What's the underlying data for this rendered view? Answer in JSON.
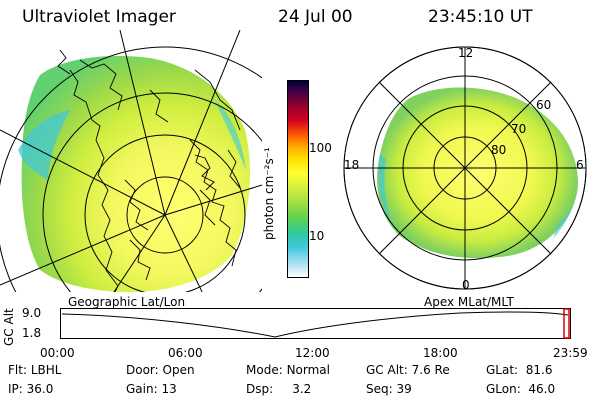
{
  "header": {
    "instrument": "Ultraviolet Imager",
    "date": "24 Jul 00",
    "time": "23:45:10 UT"
  },
  "colorbar": {
    "unit_label": "photon cm⁻²s⁻¹",
    "ticks": [
      "100",
      "10"
    ],
    "colors": [
      "#000033",
      "#4b0050",
      "#8b0030",
      "#d40020",
      "#ff6000",
      "#ffb000",
      "#ffe000",
      "#ffff30",
      "#d8f040",
      "#a0e040",
      "#60d050",
      "#30c8a0",
      "#40c8e0",
      "#a8e0f0",
      "#ffffff"
    ]
  },
  "left_panel": {
    "label": "Geographic Lat/Lon",
    "colors": {
      "bright": "#ffff60",
      "mid": "#d8f040",
      "low": "#90d850",
      "edge": "#40c8e0"
    }
  },
  "right_panel": {
    "label": "Apex MLat/MLT",
    "mlt_labels": {
      "top": "12",
      "left": "18",
      "right": "6",
      "bottom": "0"
    },
    "lat_labels": [
      "60",
      "70",
      "80"
    ]
  },
  "timeline": {
    "axis_label": "GC Alt",
    "y_ticks": [
      "9.0",
      "1.8"
    ],
    "x_ticks": [
      "00:00",
      "06:00",
      "12:00",
      "18:00",
      "23:59"
    ],
    "marker_color": "#e00000"
  },
  "info": {
    "row1": [
      {
        "label": "Flt:",
        "value": "LBHL"
      },
      {
        "label": "Door:",
        "value": "Open"
      },
      {
        "label": "Mode:",
        "value": "Normal"
      },
      {
        "label": "GC Alt:",
        "value": "7.6 Re"
      },
      {
        "label": "GLat:",
        "value": "81.6"
      }
    ],
    "row2": [
      {
        "label": "IP:",
        "value": "36.0"
      },
      {
        "label": "Gain:",
        "value": "13"
      },
      {
        "label": "Dsp:",
        "value": "3.2"
      },
      {
        "label": "Seq:",
        "value": "39"
      },
      {
        "label": "GLon:",
        "value": "46.0"
      }
    ]
  }
}
